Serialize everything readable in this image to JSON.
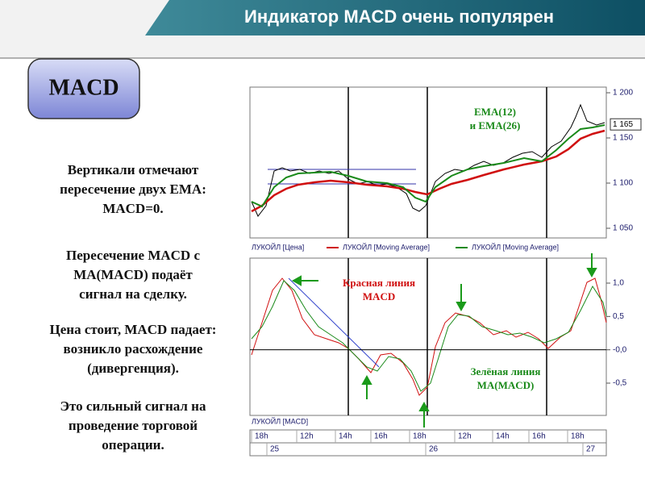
{
  "header": {
    "title": "Индикатор MACD очень популярен"
  },
  "badge": "MACD",
  "paragraphs": [
    [
      "Вертикали отмечают",
      "пересечение двух EMA:",
      "MACD=0."
    ],
    [
      "Пересечение  MACD с",
      "MA(MACD)  подаёт",
      "сигнал на сделку."
    ],
    [
      "Цена стоит, MACD падает:",
      "возникло расхождение",
      "(дивергенция)."
    ],
    [
      "Это сильный сигнал на",
      "проведение торговой",
      "операции."
    ]
  ],
  "chart": {
    "price_panel": {
      "yticks": [
        {
          "value": 1200,
          "label": "1 200"
        },
        {
          "value": 1150,
          "label": "1 150"
        },
        {
          "value": 1100,
          "label": "1 100"
        },
        {
          "value": 1050,
          "label": "1 050"
        }
      ],
      "last_price": {
        "value": 1165,
        "label": "1 165"
      },
      "annotation": [
        "EMA(12)",
        "и EMA(26)"
      ],
      "legend": [
        "ЛУКОЙЛ [Цена]",
        "ЛУКОЙЛ [Moving Average]",
        "ЛУКОЙЛ [Moving Average]"
      ]
    },
    "macd_panel": {
      "yticks": [
        {
          "value": 1.0,
          "label": "1,0"
        },
        {
          "value": 0.5,
          "label": "0,5"
        },
        {
          "value": 0.0,
          "label": "-0,0"
        },
        {
          "value": -0.5,
          "label": "-0,5"
        }
      ],
      "red_note": [
        "Красная линия",
        "MACD"
      ],
      "green_note": [
        "Зелёная линия",
        "MA(MACD)"
      ],
      "legend": "ЛУКОЙЛ [MACD]"
    },
    "time_axis": {
      "hours": [
        "18h",
        "12h",
        "14h",
        "16h",
        "18h",
        "12h",
        "14h",
        "16h",
        "18h"
      ],
      "dates": [
        "25",
        "26",
        "27"
      ]
    }
  }
}
